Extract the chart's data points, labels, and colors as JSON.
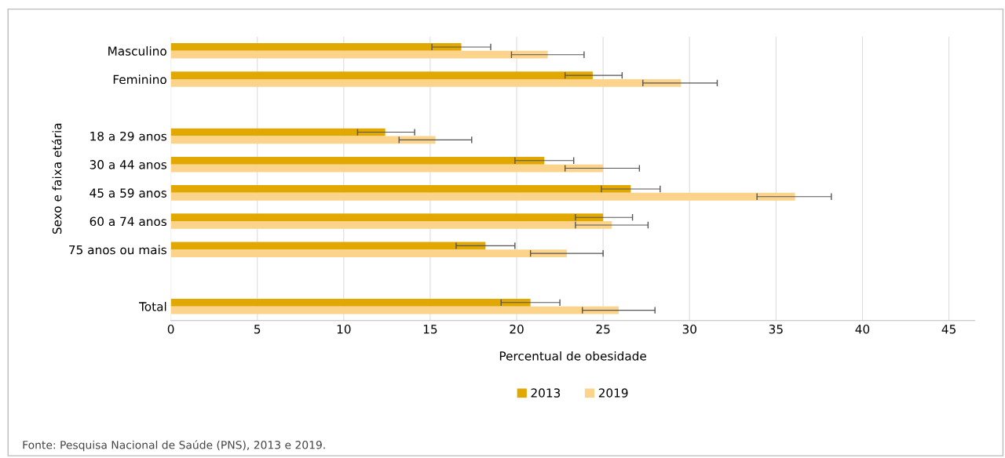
{
  "chart_data": {
    "type": "bar",
    "orientation": "horizontal",
    "categories": [
      "Masculino",
      "Feminino",
      null,
      "18 a 29 anos",
      "30 a 44 anos",
      "45 a 59 anos",
      "60 a 74 anos",
      "75 anos ou mais",
      null,
      "Total"
    ],
    "series": [
      {
        "name": "2013",
        "color": "#e0a800",
        "values": [
          16.8,
          24.4,
          null,
          12.4,
          21.6,
          26.6,
          25.0,
          18.2,
          null,
          20.8
        ],
        "errors": [
          [
            15.1,
            18.5
          ],
          [
            22.8,
            26.1
          ],
          null,
          [
            10.8,
            14.1
          ],
          [
            19.9,
            23.3
          ],
          [
            24.9,
            28.3
          ],
          [
            23.4,
            26.7
          ],
          [
            16.5,
            19.9
          ],
          null,
          [
            19.1,
            22.5
          ]
        ]
      },
      {
        "name": "2019",
        "color": "#fbd38a",
        "values": [
          21.8,
          29.5,
          null,
          15.3,
          25.0,
          36.1,
          25.5,
          22.9,
          null,
          25.9
        ],
        "errors": [
          [
            19.7,
            23.9
          ],
          [
            27.3,
            31.6
          ],
          null,
          [
            13.2,
            17.4
          ],
          [
            22.8,
            27.1
          ],
          [
            33.9,
            38.2
          ],
          [
            23.4,
            27.6
          ],
          [
            20.8,
            25.0
          ],
          null,
          [
            23.8,
            28.0
          ]
        ]
      }
    ],
    "xlim": [
      0,
      46.5
    ],
    "xticks": [
      0,
      5,
      10,
      15,
      20,
      25,
      30,
      35,
      40,
      45
    ],
    "xlabel": "Percentual de obesidade",
    "ylabel": "Sexo e faixa etária",
    "grid": "x",
    "legend": "bottom",
    "annotations": [
      "Fonte: Pesquisa Nacional de Saúde (PNS), 2013 e 2019."
    ]
  }
}
